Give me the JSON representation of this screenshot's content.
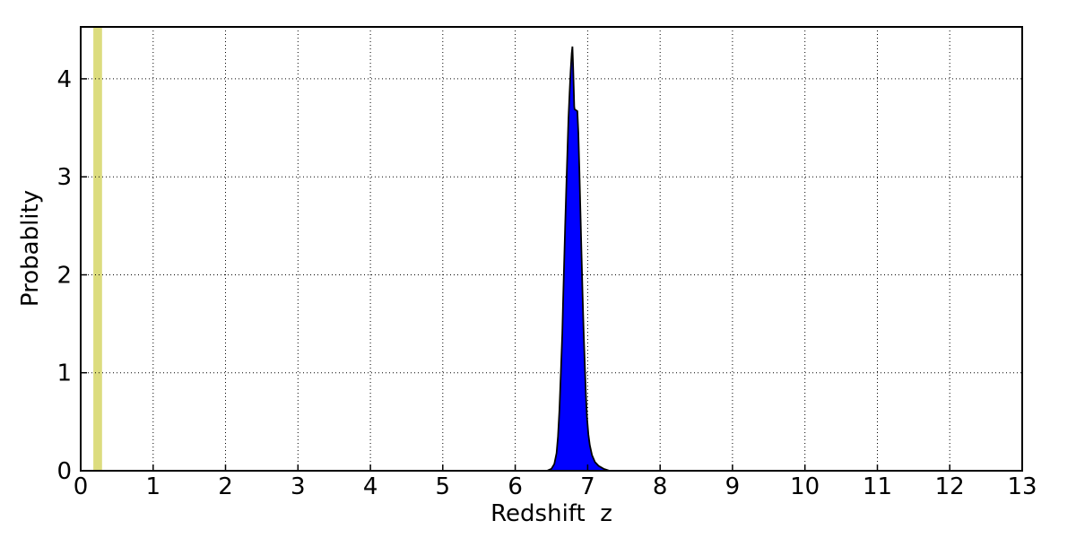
{
  "chart_data": {
    "type": "area",
    "title": "",
    "xlabel": "Redshift  z",
    "ylabel": "Probablity",
    "xlim": [
      0,
      13
    ],
    "ylim": [
      0,
      4.53
    ],
    "xticks": [
      0,
      1,
      2,
      3,
      4,
      5,
      6,
      7,
      8,
      9,
      10,
      11,
      12,
      13
    ],
    "yticks": [
      0,
      1,
      2,
      3,
      4
    ],
    "grid": true,
    "legend": "none",
    "style": {
      "background": "#ffffff",
      "frame_color": "#000000",
      "grid_color": "#000000",
      "grid_line_style": "dotted",
      "tick_direction": "in"
    },
    "series": [
      {
        "name": "redshift-probability-distribution",
        "type": "filled_curve",
        "fill_color": "#0000ff",
        "edge_color": "#000000",
        "peak": {
          "x": 6.79,
          "y": 4.33
        },
        "points": [
          [
            6.44,
            0.0
          ],
          [
            6.5,
            0.02
          ],
          [
            6.54,
            0.07
          ],
          [
            6.57,
            0.18
          ],
          [
            6.59,
            0.35
          ],
          [
            6.61,
            0.62
          ],
          [
            6.63,
            1.0
          ],
          [
            6.65,
            1.4
          ],
          [
            6.66,
            1.7
          ],
          [
            6.675,
            2.1
          ],
          [
            6.69,
            2.5
          ],
          [
            6.705,
            2.9
          ],
          [
            6.72,
            3.25
          ],
          [
            6.735,
            3.6
          ],
          [
            6.75,
            3.85
          ],
          [
            6.765,
            4.08
          ],
          [
            6.78,
            4.26
          ],
          [
            6.79,
            4.33
          ],
          [
            6.8,
            4.12
          ],
          [
            6.81,
            3.86
          ],
          [
            6.815,
            3.72
          ],
          [
            6.82,
            3.69
          ],
          [
            6.858,
            3.67
          ],
          [
            6.872,
            3.45
          ],
          [
            6.886,
            3.05
          ],
          [
            6.9,
            2.65
          ],
          [
            6.915,
            2.22
          ],
          [
            6.93,
            1.8
          ],
          [
            6.945,
            1.42
          ],
          [
            6.96,
            1.08
          ],
          [
            6.975,
            0.78
          ],
          [
            6.99,
            0.55
          ],
          [
            7.01,
            0.37
          ],
          [
            7.03,
            0.26
          ],
          [
            7.06,
            0.16
          ],
          [
            7.1,
            0.09
          ],
          [
            7.15,
            0.05
          ],
          [
            7.22,
            0.02
          ],
          [
            7.3,
            0.0
          ]
        ]
      }
    ],
    "annotations": [
      {
        "name": "low-redshift-vspan",
        "type": "vspan",
        "x_from": 0.175,
        "x_to": 0.295,
        "color": "#dcdc7e"
      }
    ]
  }
}
